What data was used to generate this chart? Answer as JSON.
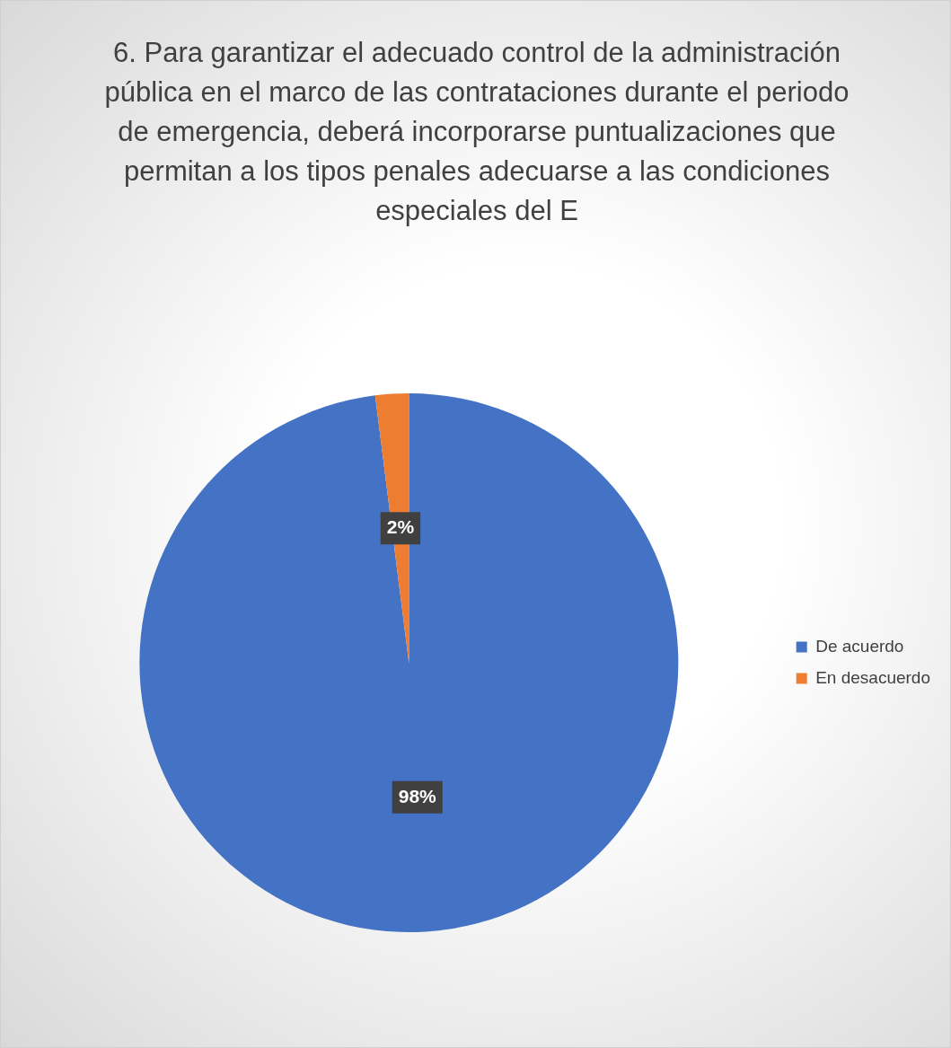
{
  "chart_data": {
    "type": "pie",
    "title": "6.\tPara garantizar el adecuado control de la administración pública en el marco de las contrataciones durante el periodo de emergencia, deberá incorporarse puntualizaciones que permitan a los tipos penales adecuarse a las condiciones especiales del E",
    "categories": [
      "De acuerdo",
      "En desacuerdo"
    ],
    "values": [
      98,
      2
    ],
    "colors": [
      "#4472c4",
      "#ed7d31"
    ],
    "value_labels": [
      "98%",
      "2%"
    ],
    "legend": "right"
  }
}
